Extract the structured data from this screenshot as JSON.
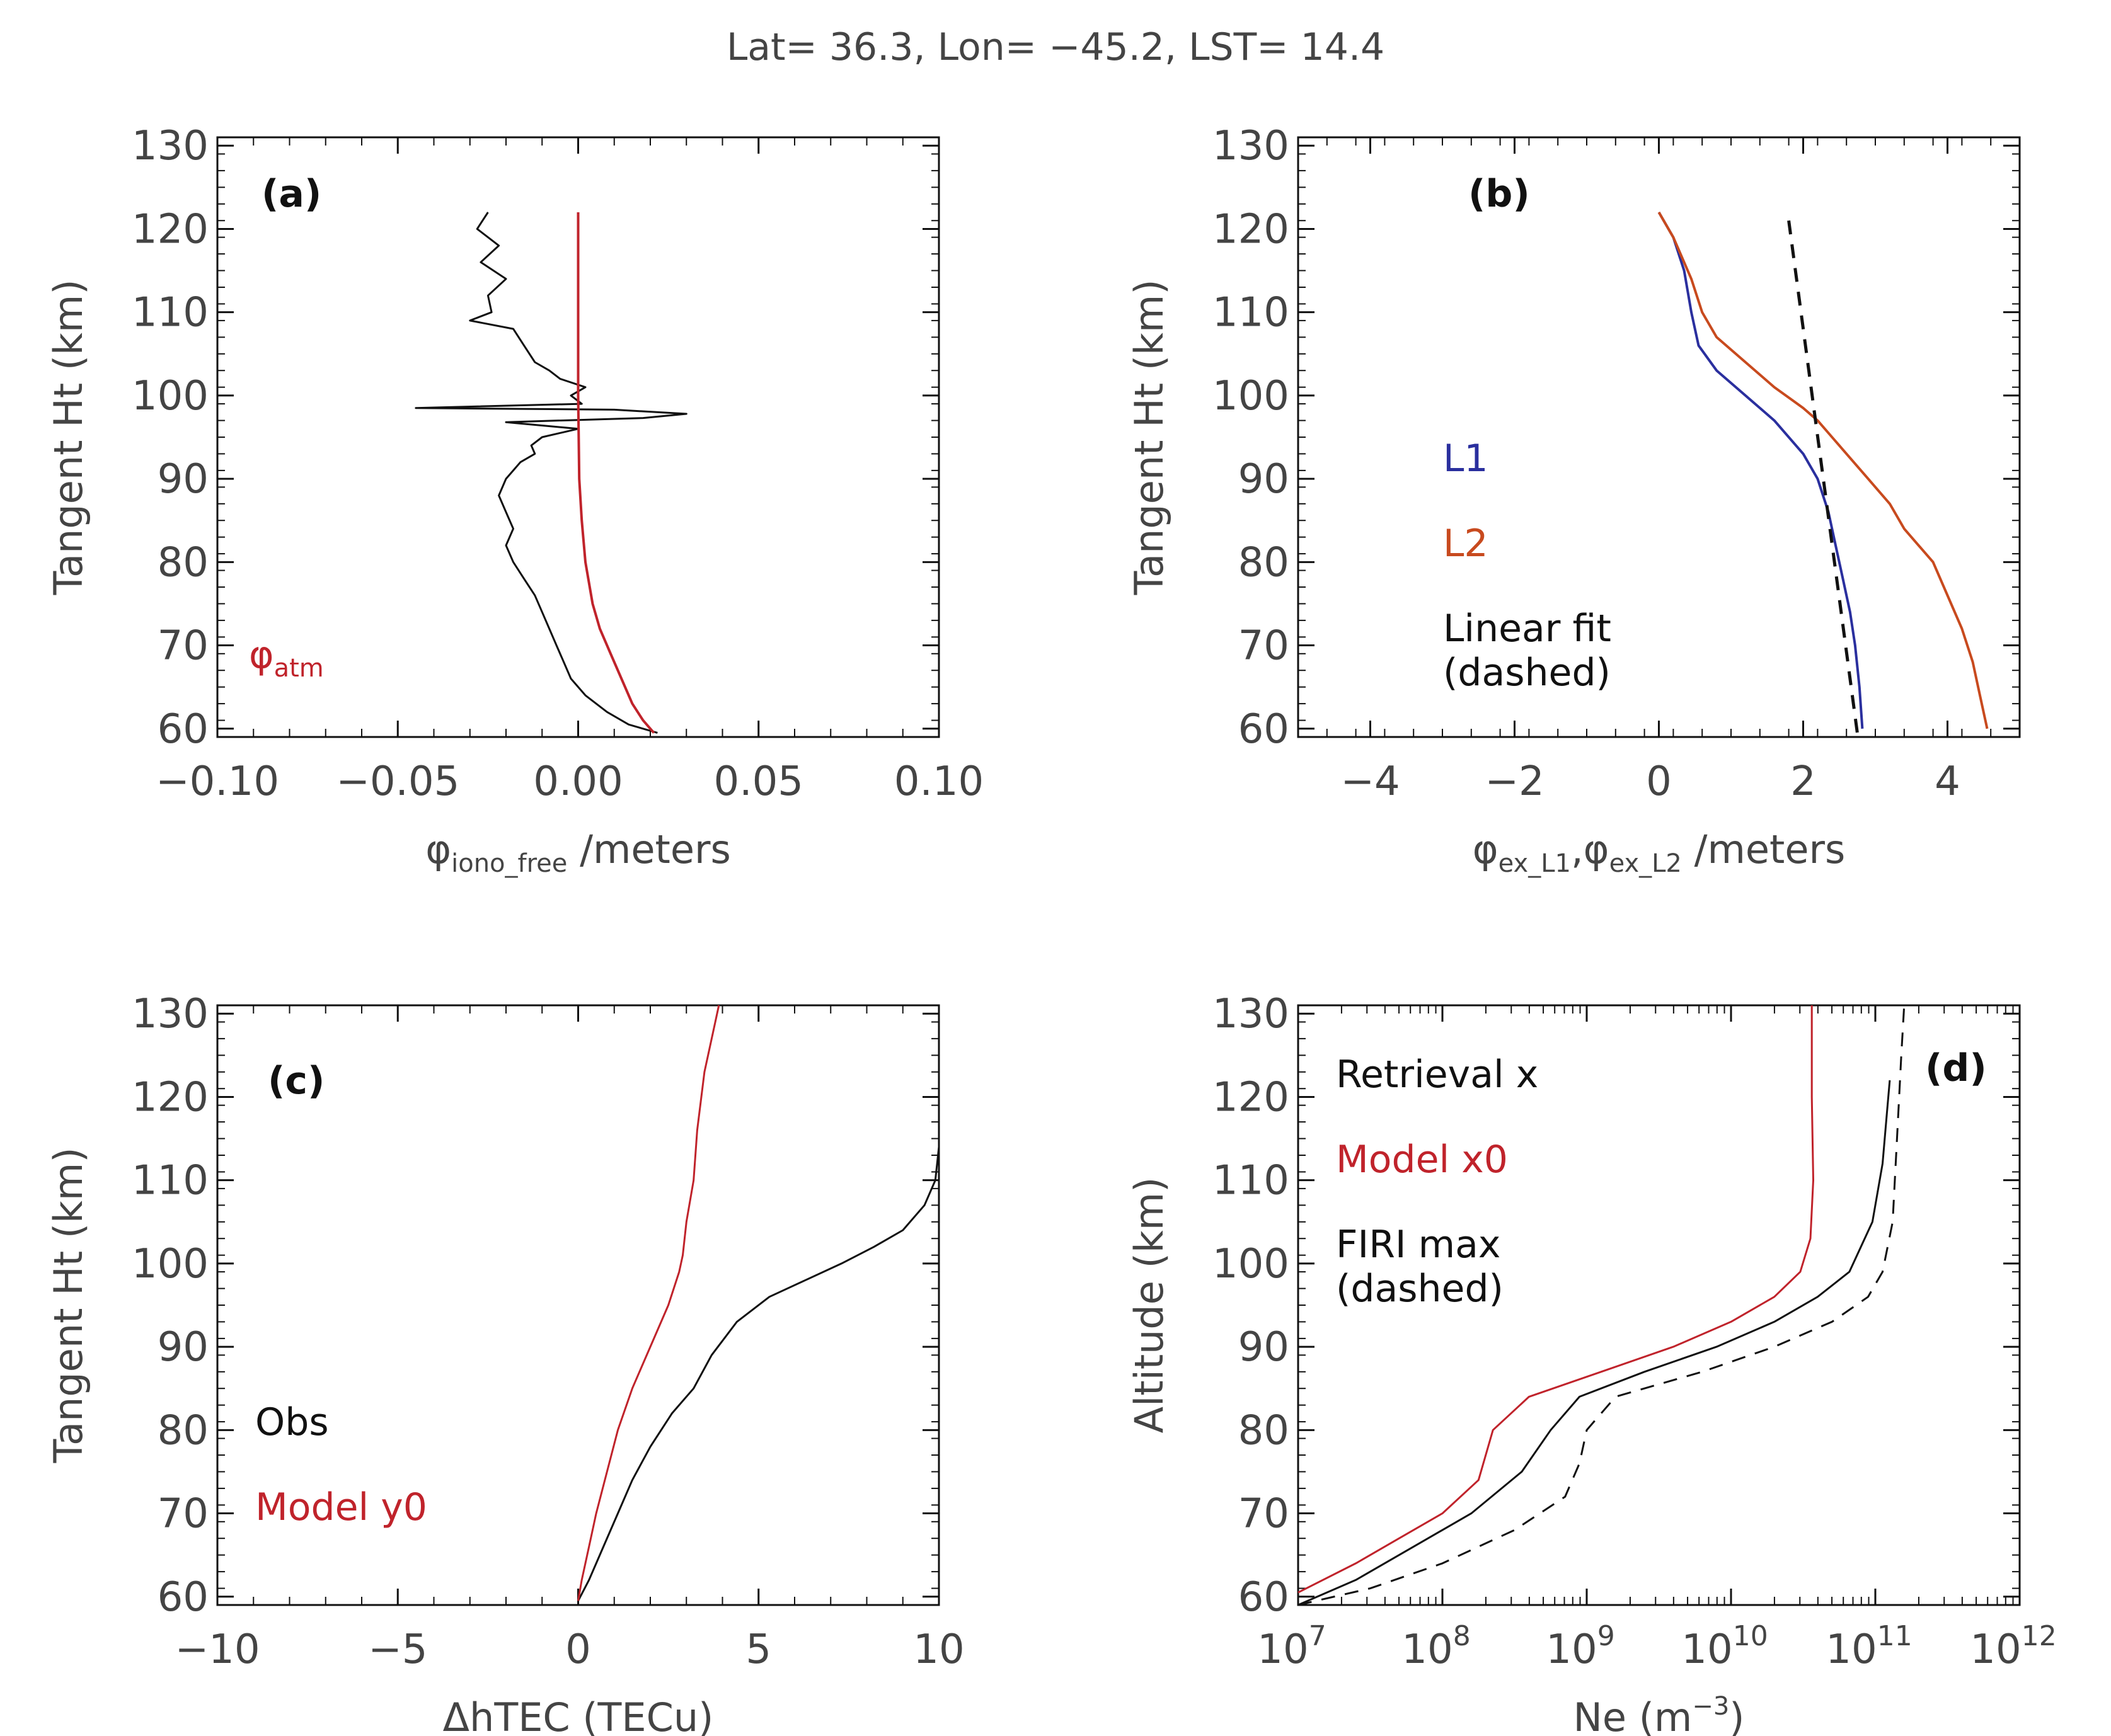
{
  "title": "Lat= 36.3, Lon= −45.2, LST= 14.4",
  "colors": {
    "black": "#111111",
    "red": "#c0232b",
    "blue": "#2a2f9e",
    "orange": "#c84a1e"
  },
  "chart_data": [
    {
      "id": "a",
      "panel_label": "(a)",
      "type": "line",
      "xlabel": "φ iono_free /meters",
      "xlabel_symbol": "φ",
      "xlabel_sub": "iono_free",
      "xlabel_unit": " /meters",
      "ylabel": "Tangent Ht (km)",
      "xlim": [
        -0.1,
        0.1
      ],
      "ylim": [
        59,
        131
      ],
      "xticks": [
        -0.1,
        -0.05,
        0.0,
        0.05,
        0.1
      ],
      "xtick_labels": [
        "−0.10",
        "−0.05",
        "0.00",
        "0.05",
        "0.10"
      ],
      "yticks": [
        60,
        70,
        80,
        90,
        100,
        110,
        120,
        130
      ],
      "ytick_labels": [
        "60",
        "70",
        "80",
        "90",
        "100",
        "110",
        "120",
        "130"
      ],
      "legend": [
        {
          "text": "φatm",
          "symbol": "φ",
          "sub": "atm",
          "color": "red"
        }
      ],
      "series": [
        {
          "name": "phi_iono_free",
          "color": "black",
          "width": 3,
          "points": [
            [
              -0.025,
              122
            ],
            [
              -0.028,
              120
            ],
            [
              -0.022,
              118
            ],
            [
              -0.027,
              116
            ],
            [
              -0.02,
              114
            ],
            [
              -0.025,
              112
            ],
            [
              -0.024,
              110
            ],
            [
              -0.03,
              109
            ],
            [
              -0.018,
              108
            ],
            [
              -0.015,
              106
            ],
            [
              -0.012,
              104
            ],
            [
              -0.008,
              103
            ],
            [
              -0.005,
              102
            ],
            [
              0.002,
              101
            ],
            [
              -0.002,
              100
            ],
            [
              0.001,
              99
            ],
            [
              -0.045,
              98.5
            ],
            [
              0.01,
              98.3
            ],
            [
              0.03,
              97.8
            ],
            [
              0.018,
              97.3
            ],
            [
              -0.02,
              96.8
            ],
            [
              0.0,
              96
            ],
            [
              -0.01,
              95
            ],
            [
              -0.013,
              94
            ],
            [
              -0.012,
              93
            ],
            [
              -0.016,
              92
            ],
            [
              -0.018,
              91
            ],
            [
              -0.02,
              90
            ],
            [
              -0.022,
              88
            ],
            [
              -0.02,
              86
            ],
            [
              -0.018,
              84
            ],
            [
              -0.02,
              82
            ],
            [
              -0.018,
              80
            ],
            [
              -0.015,
              78
            ],
            [
              -0.012,
              76
            ],
            [
              -0.01,
              74
            ],
            [
              -0.008,
              72
            ],
            [
              -0.006,
              70
            ],
            [
              -0.004,
              68
            ],
            [
              -0.002,
              66
            ],
            [
              0.002,
              64
            ],
            [
              0.008,
              62
            ],
            [
              0.014,
              60.5
            ],
            [
              0.022,
              59.5
            ]
          ]
        },
        {
          "name": "phi_atm",
          "color": "red",
          "width": 4,
          "points": [
            [
              0.0,
              122
            ],
            [
              0.0,
              110
            ],
            [
              0.0,
              100
            ],
            [
              0.0003,
              90
            ],
            [
              0.001,
              85
            ],
            [
              0.002,
              80
            ],
            [
              0.004,
              75
            ],
            [
              0.006,
              72
            ],
            [
              0.009,
              69
            ],
            [
              0.012,
              66
            ],
            [
              0.015,
              63
            ],
            [
              0.018,
              61
            ],
            [
              0.021,
              59.5
            ]
          ]
        }
      ]
    },
    {
      "id": "b",
      "panel_label": "(b)",
      "type": "line",
      "xlabel": "φ ex_L1, φ ex_L2 /meters",
      "ylabel": "Tangent Ht (km)",
      "xlim": [
        -5,
        5
      ],
      "ylim": [
        59,
        131
      ],
      "xticks": [
        -4,
        -2,
        0,
        2,
        4
      ],
      "xtick_labels": [
        "−4",
        "−2",
        "0",
        "2",
        "4"
      ],
      "yticks": [
        60,
        70,
        80,
        90,
        100,
        110,
        120,
        130
      ],
      "ytick_labels": [
        "60",
        "70",
        "80",
        "90",
        "100",
        "110",
        "120",
        "130"
      ],
      "legend": [
        {
          "text": "L1",
          "color": "blue"
        },
        {
          "text": "L2",
          "color": "orange"
        },
        {
          "text": "Linear fit",
          "color": "black"
        },
        {
          "text": "(dashed)",
          "color": "black"
        }
      ],
      "series": [
        {
          "name": "L1",
          "color": "blue",
          "width": 4,
          "points": [
            [
              0.0,
              122
            ],
            [
              0.2,
              119
            ],
            [
              0.35,
              115
            ],
            [
              0.45,
              110
            ],
            [
              0.55,
              106
            ],
            [
              0.8,
              103
            ],
            [
              1.2,
              100
            ],
            [
              1.6,
              97
            ],
            [
              2.0,
              93
            ],
            [
              2.2,
              90
            ],
            [
              2.35,
              86
            ],
            [
              2.45,
              82
            ],
            [
              2.55,
              78
            ],
            [
              2.65,
              74
            ],
            [
              2.72,
              70
            ],
            [
              2.78,
              65
            ],
            [
              2.82,
              60
            ]
          ]
        },
        {
          "name": "L2",
          "color": "orange",
          "width": 4,
          "points": [
            [
              0.0,
              122
            ],
            [
              0.2,
              119
            ],
            [
              0.45,
              114
            ],
            [
              0.6,
              110
            ],
            [
              0.8,
              107
            ],
            [
              1.2,
              104
            ],
            [
              1.6,
              101
            ],
            [
              2.0,
              98.5
            ],
            [
              2.2,
              97
            ],
            [
              2.4,
              95
            ],
            [
              2.6,
              93
            ],
            [
              2.9,
              90
            ],
            [
              3.2,
              87
            ],
            [
              3.4,
              84
            ],
            [
              3.6,
              82
            ],
            [
              3.8,
              80
            ],
            [
              4.0,
              76
            ],
            [
              4.2,
              72
            ],
            [
              4.35,
              68
            ],
            [
              4.45,
              64
            ],
            [
              4.55,
              60
            ]
          ]
        },
        {
          "name": "Linear fit",
          "color": "black",
          "width": 5,
          "dashed": true,
          "points": [
            [
              1.8,
              121
            ],
            [
              2.75,
              59.5
            ]
          ]
        }
      ]
    },
    {
      "id": "c",
      "panel_label": "(c)",
      "type": "line",
      "xlabel": "ΔhTEC (TECu)",
      "ylabel": "Tangent Ht (km)",
      "xlim": [
        -10,
        10
      ],
      "ylim": [
        59,
        131
      ],
      "xticks": [
        -10,
        -5,
        0,
        5,
        10
      ],
      "xtick_labels": [
        "−10",
        "−5",
        "0",
        "5",
        "10"
      ],
      "yticks": [
        60,
        70,
        80,
        90,
        100,
        110,
        120,
        130
      ],
      "ytick_labels": [
        "60",
        "70",
        "80",
        "90",
        "100",
        "110",
        "120",
        "130"
      ],
      "legend": [
        {
          "text": "Obs",
          "color": "black"
        },
        {
          "text": "Model y0",
          "color": "red"
        }
      ],
      "series": [
        {
          "name": "Obs",
          "color": "black",
          "width": 3,
          "points": [
            [
              0.0,
              59.5
            ],
            [
              0.3,
              62
            ],
            [
              0.7,
              66
            ],
            [
              1.1,
              70
            ],
            [
              1.5,
              74
            ],
            [
              2.0,
              78
            ],
            [
              2.6,
              82
            ],
            [
              3.2,
              85
            ],
            [
              3.7,
              89
            ],
            [
              4.4,
              93
            ],
            [
              5.3,
              96
            ],
            [
              6.3,
              98
            ],
            [
              7.3,
              100
            ],
            [
              8.2,
              102
            ],
            [
              9.0,
              104
            ],
            [
              9.6,
              107
            ],
            [
              9.9,
              110
            ],
            [
              10.0,
              114
            ],
            [
              10.0,
              117
            ]
          ]
        },
        {
          "name": "Model y0",
          "color": "red",
          "width": 3,
          "points": [
            [
              0.0,
              59.5
            ],
            [
              0.1,
              62
            ],
            [
              0.3,
              66
            ],
            [
              0.5,
              70
            ],
            [
              0.8,
              75
            ],
            [
              1.1,
              80
            ],
            [
              1.5,
              85
            ],
            [
              2.0,
              90
            ],
            [
              2.5,
              95
            ],
            [
              2.8,
              99
            ],
            [
              2.9,
              101
            ],
            [
              3.0,
              105
            ],
            [
              3.2,
              110
            ],
            [
              3.3,
              116
            ],
            [
              3.5,
              123
            ],
            [
              3.8,
              129
            ],
            [
              3.9,
              131
            ]
          ]
        }
      ]
    },
    {
      "id": "d",
      "panel_label": "(d)",
      "type": "line",
      "xscale": "log",
      "xlabel": "Ne (m−3)",
      "xlabel_base": "Ne (m",
      "xlabel_exp": "−3",
      "xlabel_close": ")",
      "ylabel": "Altitude (km)",
      "xlim_log10": [
        7,
        12
      ],
      "ylim": [
        59,
        131
      ],
      "xticks_log10": [
        7,
        8,
        9,
        10,
        11,
        12
      ],
      "xtick_base": "10",
      "xtick_exps": [
        "7",
        "8",
        "9",
        "10",
        "11",
        "12"
      ],
      "yticks": [
        60,
        70,
        80,
        90,
        100,
        110,
        120,
        130
      ],
      "ytick_labels": [
        "60",
        "70",
        "80",
        "90",
        "100",
        "110",
        "120",
        "130"
      ],
      "legend": [
        {
          "text": "Retrieval x",
          "color": "black"
        },
        {
          "text": "Model x0",
          "color": "red"
        },
        {
          "text": "FIRI max",
          "color": "black"
        },
        {
          "text": "(dashed)",
          "color": "black"
        }
      ],
      "series": [
        {
          "name": "Retrieval x",
          "color": "black",
          "width": 3,
          "points_log10": [
            [
              7.0,
              59
            ],
            [
              7.4,
              62
            ],
            [
              7.8,
              66
            ],
            [
              8.2,
              70
            ],
            [
              8.55,
              75
            ],
            [
              8.75,
              80
            ],
            [
              8.95,
              84
            ],
            [
              9.4,
              87
            ],
            [
              9.9,
              90
            ],
            [
              10.3,
              93
            ],
            [
              10.6,
              96
            ],
            [
              10.82,
              99
            ],
            [
              10.98,
              105
            ],
            [
              11.05,
              112
            ],
            [
              11.08,
              118
            ],
            [
              11.1,
              122
            ]
          ]
        },
        {
          "name": "Model x0",
          "color": "red",
          "width": 3,
          "points_log10": [
            [
              7.0,
              60.5
            ],
            [
              7.4,
              64
            ],
            [
              7.7,
              67
            ],
            [
              8.0,
              70
            ],
            [
              8.25,
              74
            ],
            [
              8.35,
              80
            ],
            [
              8.6,
              84
            ],
            [
              9.1,
              87
            ],
            [
              9.6,
              90
            ],
            [
              10.0,
              93
            ],
            [
              10.3,
              96
            ],
            [
              10.48,
              99
            ],
            [
              10.55,
              103
            ],
            [
              10.57,
              110
            ],
            [
              10.56,
              120
            ],
            [
              10.56,
              131
            ]
          ]
        },
        {
          "name": "FIRI max",
          "color": "black",
          "width": 3,
          "dashed": true,
          "points_log10": [
            [
              7.0,
              59
            ],
            [
              7.5,
              61
            ],
            [
              8.0,
              64
            ],
            [
              8.5,
              68
            ],
            [
              8.85,
              72
            ],
            [
              8.95,
              76
            ],
            [
              9.0,
              80
            ],
            [
              9.2,
              84
            ],
            [
              9.8,
              87
            ],
            [
              10.3,
              90
            ],
            [
              10.7,
              93
            ],
            [
              10.95,
              96
            ],
            [
              11.05,
              99
            ],
            [
              11.12,
              105
            ],
            [
              11.15,
              115
            ],
            [
              11.18,
              125
            ],
            [
              11.2,
              131
            ]
          ]
        }
      ]
    }
  ]
}
